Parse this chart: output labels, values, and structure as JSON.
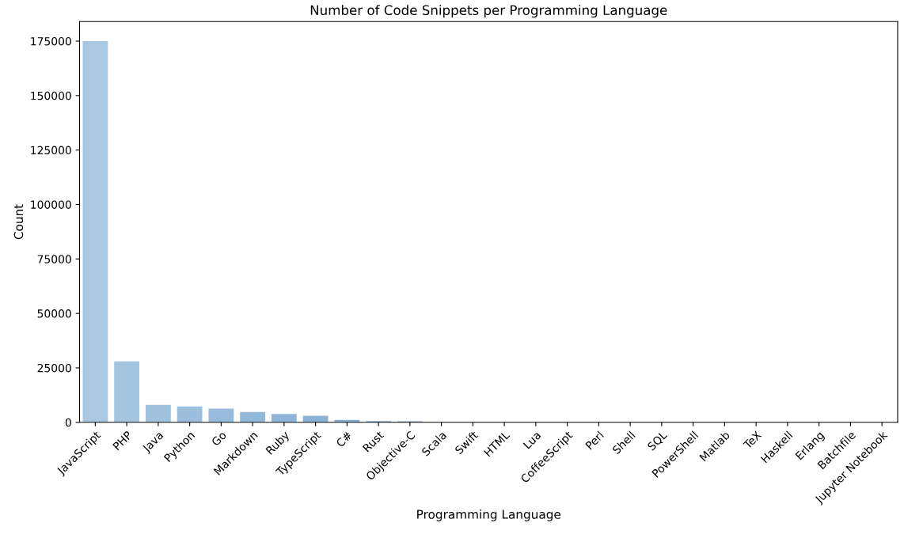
{
  "chart_data": {
    "type": "bar",
    "title": "Number of Code Snippets per Programming Language",
    "xlabel": "Programming Language",
    "ylabel": "Count",
    "categories": [
      "JavaScript",
      "PHP",
      "Java",
      "Python",
      "Go",
      "Markdown",
      "Ruby",
      "TypeScript",
      "C#",
      "Rust",
      "Objective-C",
      "Scala",
      "Swift",
      "HTML",
      "Lua",
      "CoffeeScript",
      "Perl",
      "Shell",
      "SQL",
      "PowerShell",
      "Matlab",
      "TeX",
      "Haskell",
      "Erlang",
      "Batchfile",
      "Jupyter Notebook"
    ],
    "values": [
      175000,
      28000,
      8000,
      7300,
      6300,
      4700,
      3800,
      3000,
      1100,
      600,
      500,
      null,
      null,
      null,
      null,
      null,
      null,
      null,
      null,
      null,
      null,
      null,
      null,
      null,
      null,
      null
    ],
    "colors": [
      "#a9c9e2",
      "#a3c5e0",
      "#9fc2de",
      "#9bbfdd",
      "#97bcdb",
      "#93b9da",
      "#8fb6d8",
      "#8bb3d6",
      "#87b0d5",
      "#83add3",
      "#7faad1",
      "#7ba7d0",
      "#78a4ce",
      "#75a2cd",
      "#729fcb",
      "#6f9dca",
      "#6c9ac8",
      "#6998c7",
      "#6696c5",
      "#6394c4",
      "#6092c2",
      "#5d90c1",
      "#5a8ec0",
      "#578cbe",
      "#548abd",
      "#5188bb"
    ],
    "ylim": [
      0,
      184000
    ],
    "yticks": [
      0,
      25000,
      50000,
      75000,
      100000,
      125000,
      150000,
      175000
    ],
    "grid": false
  }
}
